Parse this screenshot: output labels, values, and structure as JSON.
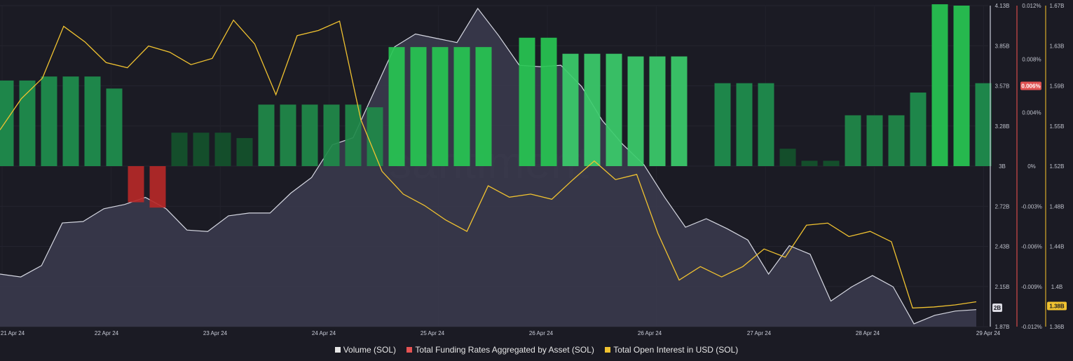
{
  "chart_data": {
    "type": "bar",
    "x_labels": [
      "21 Apr 24",
      "22 Apr 24",
      "23 Apr 24",
      "24 Apr 24",
      "25 Apr 24",
      "26 Apr 24",
      "26 Apr 24",
      "27 Apr 24",
      "28 Apr 24",
      "29 Apr 24"
    ],
    "watermark": "santiment",
    "axes": {
      "volume": {
        "ticks": [
          "4.13B",
          "3.85B",
          "3.57B",
          "3.28B",
          "3B",
          "2.72B",
          "2.43B",
          "2.15B",
          "1.87B"
        ],
        "min": 1.87,
        "max": 4.13,
        "current": "2B"
      },
      "funding": {
        "ticks": [
          "0.012%",
          "0.008%",
          "0.004%",
          "0%",
          "-0.003%",
          "-0.006%",
          "-0.009%",
          "-0.012%"
        ],
        "tick_values": [
          0.012,
          0.008,
          0.004,
          0,
          -0.003,
          -0.006,
          -0.009,
          -0.012
        ],
        "min": -0.012,
        "max": 0.012,
        "current": "0.006%"
      },
      "open_interest": {
        "ticks": [
          "1.67B",
          "1.63B",
          "1.59B",
          "1.55B",
          "1.52B",
          "1.48B",
          "1.44B",
          "1.4B",
          "1.36B"
        ],
        "min": 1.36,
        "max": 1.67,
        "current": "1.38B"
      }
    },
    "series": [
      {
        "name": "Volume (SOL)",
        "type": "area",
        "axis": "volume",
        "color": "#c9ccd8",
        "values": [
          2.24,
          2.22,
          2.3,
          2.6,
          2.61,
          2.7,
          2.73,
          2.78,
          2.7,
          2.55,
          2.54,
          2.65,
          2.67,
          2.67,
          2.81,
          2.92,
          3.15,
          3.2,
          3.52,
          3.84,
          3.93,
          3.9,
          3.87,
          4.11,
          3.92,
          3.71,
          3.7,
          3.71,
          3.56,
          3.32,
          3.15,
          3.01,
          2.78,
          2.57,
          2.63,
          2.56,
          2.48,
          2.24,
          2.44,
          2.38,
          2.05,
          2.15,
          2.23,
          2.15,
          1.89,
          1.95,
          1.98,
          1.99
        ]
      },
      {
        "name": "Total Funding Rates Aggregated by Asset (SOL)",
        "type": "bar",
        "axis": "funding",
        "color": "#e55353",
        "values": [
          0.0064,
          0.0064,
          0.0067,
          0.0067,
          0.0067,
          0.0058,
          -0.0027,
          -0.0031,
          0.0025,
          0.0025,
          0.0025,
          0.0021,
          0.0046,
          0.0046,
          0.0046,
          0.0046,
          0.0046,
          0.0044,
          0.0089,
          0.0089,
          0.0089,
          0.0089,
          0.0089,
          null,
          0.0096,
          0.0096,
          0.0084,
          0.0084,
          0.0084,
          0.0082,
          0.0082,
          0.0082,
          null,
          0.0062,
          0.0062,
          0.0062,
          0.0013,
          0.0004,
          0.0004,
          0.0038,
          0.0038,
          0.0038,
          0.0055,
          0.0121,
          0.012,
          0.0062
        ]
      },
      {
        "name": "Total Open Interest in USD (SOL)",
        "type": "line",
        "axis": "open_interest",
        "color": "#f0c230",
        "values": [
          1.55,
          1.58,
          1.6,
          1.65,
          1.635,
          1.615,
          1.61,
          1.631,
          1.625,
          1.613,
          1.619,
          1.656,
          1.633,
          1.584,
          1.641,
          1.646,
          1.655,
          1.56,
          1.51,
          1.488,
          1.477,
          1.463,
          1.452,
          1.496,
          1.485,
          1.488,
          1.483,
          1.502,
          1.52,
          1.502,
          1.507,
          1.45,
          1.405,
          1.418,
          1.408,
          1.418,
          1.435,
          1.427,
          1.458,
          1.46,
          1.447,
          1.452,
          1.442,
          1.378,
          1.379,
          1.381,
          1.384
        ]
      }
    ],
    "legend_position": "bottom"
  }
}
